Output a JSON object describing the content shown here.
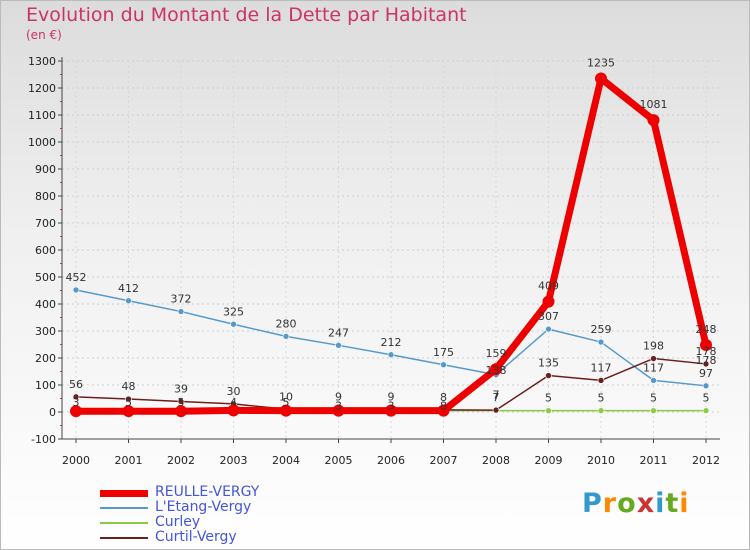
{
  "title": "Evolution du Montant de la Dette par Habitant",
  "subtitle": "(en €)",
  "logo": {
    "text": "Proxiti",
    "colors": [
      "#3399cc",
      "#ff8800",
      "#66aa22",
      "#cc3333",
      "#3399cc",
      "#66aa22",
      "#ff8800"
    ]
  },
  "chart_data": {
    "type": "line",
    "x": [
      "2000",
      "2001",
      "2002",
      "2003",
      "2004",
      "2005",
      "2006",
      "2007",
      "2008",
      "2009",
      "2010",
      "2011",
      "2012"
    ],
    "ylim": [
      -100,
      1300
    ],
    "yticks": [
      -100,
      0,
      100,
      200,
      300,
      400,
      500,
      600,
      700,
      800,
      900,
      1000,
      1100,
      1200,
      1300
    ],
    "grid": true,
    "legend_position": "bottom-left",
    "series": [
      {
        "name": "REULLE-VERGY",
        "color": "#ee0000",
        "values": [
          3,
          3,
          3,
          6,
          5,
          5,
          5,
          5,
          159,
          409,
          1235,
          1081,
          248
        ],
        "labels": [
          "",
          "",
          "",
          "",
          "",
          "",
          "",
          "",
          "159",
          "409",
          "1235",
          "1081",
          "248"
        ]
      },
      {
        "name": "L'Etang-Vergy",
        "color": "#5599cc",
        "values": [
          452,
          412,
          372,
          325,
          280,
          247,
          212,
          175,
          138,
          307,
          259,
          117,
          97
        ],
        "labels": [
          "452",
          "412",
          "372",
          "325",
          "280",
          "247",
          "212",
          "175",
          "",
          "307",
          "259",
          "117",
          "97"
        ]
      },
      {
        "name": "Curley",
        "color": "#88cc44",
        "values": [
          5,
          5,
          5,
          5,
          5,
          5,
          5,
          5,
          5,
          5,
          5,
          5,
          5
        ],
        "labels": [
          "",
          "",
          "",
          "",
          "",
          "",
          "",
          "",
          "",
          "5",
          "5",
          "5",
          "5"
        ]
      },
      {
        "name": "Curtil-Vergy",
        "color": "#6b1f1f",
        "values": [
          56,
          48,
          39,
          30,
          10,
          9,
          9,
          8,
          7,
          135,
          117,
          198,
          178
        ],
        "labels": [
          "56",
          "48",
          "39",
          "30",
          "10",
          "9",
          "9",
          "8",
          "7",
          "135",
          "117",
          "198",
          "178"
        ]
      }
    ],
    "extra_point_labels": [
      {
        "x": "2000",
        "y": 23,
        "text": "3"
      },
      {
        "x": "2001",
        "y": 23,
        "text": "5"
      },
      {
        "x": "2002",
        "y": 23,
        "text": "5"
      },
      {
        "x": "2003",
        "y": 23,
        "text": "4"
      },
      {
        "x": "2004",
        "y": 23,
        "text": "5"
      },
      {
        "x": "2005",
        "y": 10,
        "text": "3"
      },
      {
        "x": "2006",
        "y": 10,
        "text": "3"
      },
      {
        "x": "2007",
        "y": 10,
        "text": "8"
      },
      {
        "x": "2008",
        "y": 140,
        "text": "138"
      },
      {
        "x": "2008",
        "y": 50,
        "text": "7"
      },
      {
        "x": "2012",
        "y": 178,
        "text": "178"
      }
    ]
  }
}
